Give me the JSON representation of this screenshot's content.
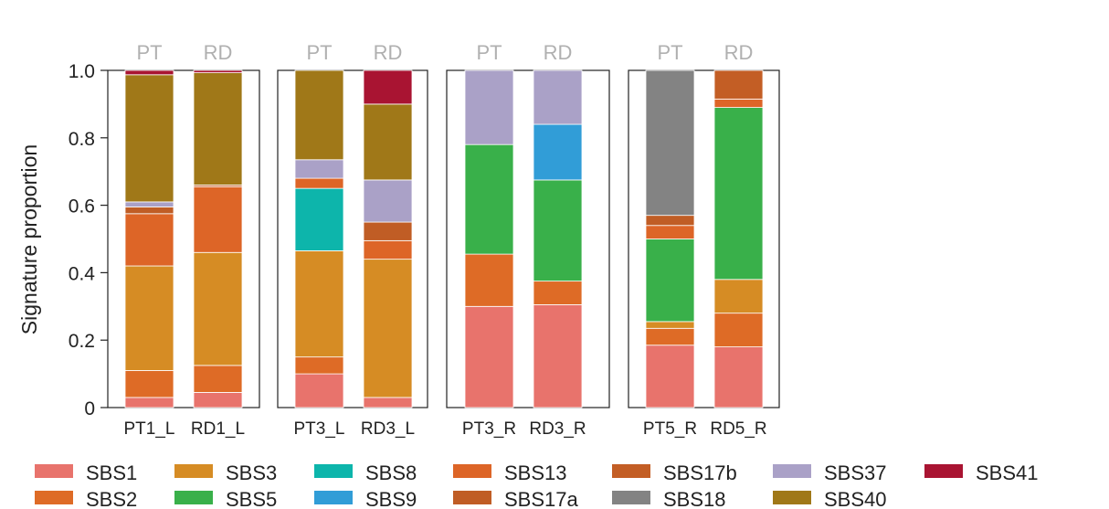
{
  "chart_data": {
    "type": "bar",
    "stacked": true,
    "ylabel": "Signature proportion",
    "ylim": [
      0,
      1
    ],
    "yticks": [
      "0",
      "0.2",
      "0.4",
      "0.6",
      "0.8",
      "1.0"
    ],
    "ytick_values": [
      0,
      0.2,
      0.4,
      0.6,
      0.8,
      1.0
    ],
    "panels": [
      {
        "headers": [
          "PT",
          "RD"
        ],
        "bars": [
          {
            "label": "PT1_L",
            "segments": [
              {
                "sig": "SBS1",
                "value": 0.03
              },
              {
                "sig": "SBS2",
                "value": 0.08
              },
              {
                "sig": "SBS3",
                "value": 0.31
              },
              {
                "sig": "SBS13",
                "value": 0.155
              },
              {
                "sig": "SBS17a",
                "value": 0.02
              },
              {
                "sig": "SBS17b",
                "value": 0.0
              },
              {
                "sig": "SBS37",
                "value": 0.015
              },
              {
                "sig": "SBS40",
                "value": 0.377
              },
              {
                "sig": "SBS41",
                "value": 0.013
              }
            ]
          },
          {
            "label": "RD1_L",
            "segments": [
              {
                "sig": "SBS1",
                "value": 0.045
              },
              {
                "sig": "SBS2",
                "value": 0.08
              },
              {
                "sig": "SBS3",
                "value": 0.335
              },
              {
                "sig": "SBS13",
                "value": 0.195
              },
              {
                "sig": "SBS17a",
                "value": 0.005
              },
              {
                "sig": "SBS40",
                "value": 0.333
              },
              {
                "sig": "SBS41",
                "value": 0.007
              }
            ]
          }
        ]
      },
      {
        "headers": [
          "PT",
          "RD"
        ],
        "bars": [
          {
            "label": "PT3_L",
            "segments": [
              {
                "sig": "SBS1",
                "value": 0.1
              },
              {
                "sig": "SBS2",
                "value": 0.05
              },
              {
                "sig": "SBS3",
                "value": 0.315
              },
              {
                "sig": "SBS8",
                "value": 0.185
              },
              {
                "sig": "SBS13",
                "value": 0.03
              },
              {
                "sig": "SBS37",
                "value": 0.055
              },
              {
                "sig": "SBS40",
                "value": 0.265
              }
            ]
          },
          {
            "label": "RD3_L",
            "segments": [
              {
                "sig": "SBS1",
                "value": 0.03
              },
              {
                "sig": "SBS3",
                "value": 0.41
              },
              {
                "sig": "SBS13",
                "value": 0.055
              },
              {
                "sig": "SBS17a",
                "value": 0.055
              },
              {
                "sig": "SBS37",
                "value": 0.125
              },
              {
                "sig": "SBS40",
                "value": 0.225
              },
              {
                "sig": "SBS41",
                "value": 0.1
              }
            ]
          }
        ]
      },
      {
        "headers": [
          "PT",
          "RD"
        ],
        "bars": [
          {
            "label": "PT3_R",
            "segments": [
              {
                "sig": "SBS1",
                "value": 0.3
              },
              {
                "sig": "SBS2",
                "value": 0.155
              },
              {
                "sig": "SBS5",
                "value": 0.325
              },
              {
                "sig": "SBS37",
                "value": 0.22
              }
            ]
          },
          {
            "label": "RD3_R",
            "segments": [
              {
                "sig": "SBS1",
                "value": 0.305
              },
              {
                "sig": "SBS2",
                "value": 0.07
              },
              {
                "sig": "SBS5",
                "value": 0.3
              },
              {
                "sig": "SBS9",
                "value": 0.165
              },
              {
                "sig": "SBS37",
                "value": 0.16
              }
            ]
          }
        ]
      },
      {
        "headers": [
          "PT",
          "RD"
        ],
        "bars": [
          {
            "label": "PT5_R",
            "segments": [
              {
                "sig": "SBS1",
                "value": 0.185
              },
              {
                "sig": "SBS2",
                "value": 0.05
              },
              {
                "sig": "SBS3",
                "value": 0.02
              },
              {
                "sig": "SBS5",
                "value": 0.245
              },
              {
                "sig": "SBS13",
                "value": 0.04
              },
              {
                "sig": "SBS17a",
                "value": 0.03
              },
              {
                "sig": "SBS18",
                "value": 0.43
              }
            ]
          },
          {
            "label": "RD5_R",
            "segments": [
              {
                "sig": "SBS1",
                "value": 0.18
              },
              {
                "sig": "SBS2",
                "value": 0.1
              },
              {
                "sig": "SBS3",
                "value": 0.1
              },
              {
                "sig": "SBS5",
                "value": 0.51
              },
              {
                "sig": "SBS13",
                "value": 0.025
              },
              {
                "sig": "SBS17b",
                "value": 0.085
              }
            ]
          }
        ]
      }
    ],
    "legend": [
      {
        "label": "SBS1",
        "color": "#e8736c"
      },
      {
        "label": "SBS2",
        "color": "#de6b26"
      },
      {
        "label": "SBS3",
        "color": "#d68c24"
      },
      {
        "label": "SBS5",
        "color": "#39b04a"
      },
      {
        "label": "SBS8",
        "color": "#0db5ab"
      },
      {
        "label": "SBS9",
        "color": "#319dd7"
      },
      {
        "label": "SBS13",
        "color": "#dd6527"
      },
      {
        "label": "SBS17a",
        "color": "#c05d25"
      },
      {
        "label": "SBS17b",
        "color": "#c35e25"
      },
      {
        "label": "SBS18",
        "color": "#838383"
      },
      {
        "label": "SBS37",
        "color": "#aaa1c7"
      },
      {
        "label": "SBS40",
        "color": "#a07818"
      },
      {
        "label": "SBS41",
        "color": "#a91432"
      }
    ]
  }
}
